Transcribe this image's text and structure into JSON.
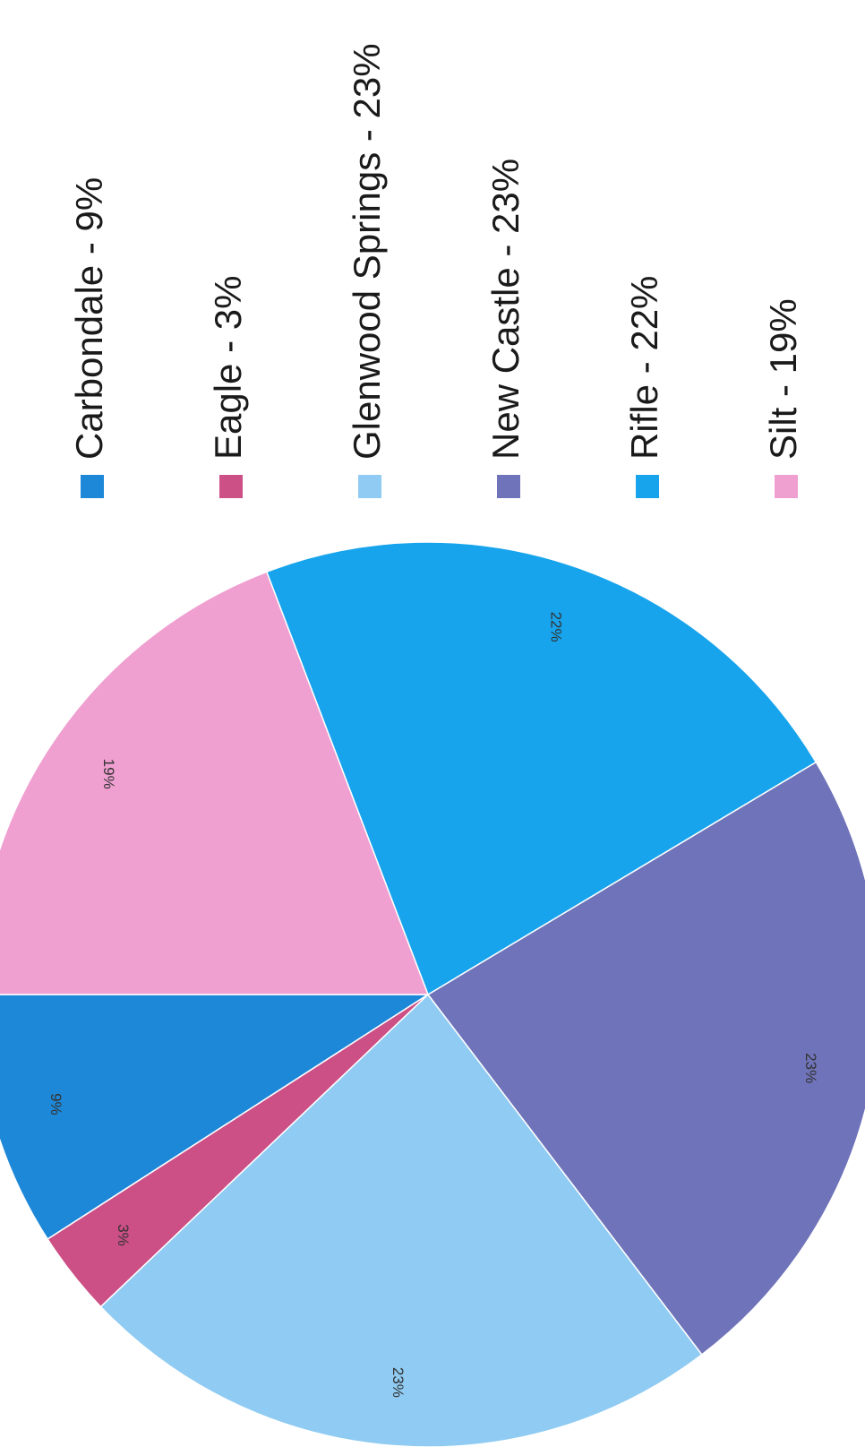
{
  "chart_data": {
    "type": "pie",
    "title": "",
    "legend_placement": "right",
    "slices": [
      {
        "name": "Carbondale",
        "value": 9,
        "label": "9%",
        "legend": "Carbondale - 9%",
        "color": "#1e88d8"
      },
      {
        "name": "Eagle",
        "value": 3,
        "label": "3%",
        "legend": "Eagle - 3%",
        "color": "#cc4f86"
      },
      {
        "name": "Glenwood Springs",
        "value": 23,
        "label": "23%",
        "legend": "Glenwood Springs - 23%",
        "color": "#8fcbf2"
      },
      {
        "name": "New Castle",
        "value": 23,
        "label": "23%",
        "legend": "New Castle - 23%",
        "color": "#6f73b9"
      },
      {
        "name": "Rifle",
        "value": 22,
        "label": "22%",
        "legend": "Rifle - 22%",
        "color": "#17a4ec"
      },
      {
        "name": "Silt",
        "value": 19,
        "label": "19%",
        "legend": "Silt - 19%",
        "color": "#ef9fd0"
      }
    ]
  }
}
